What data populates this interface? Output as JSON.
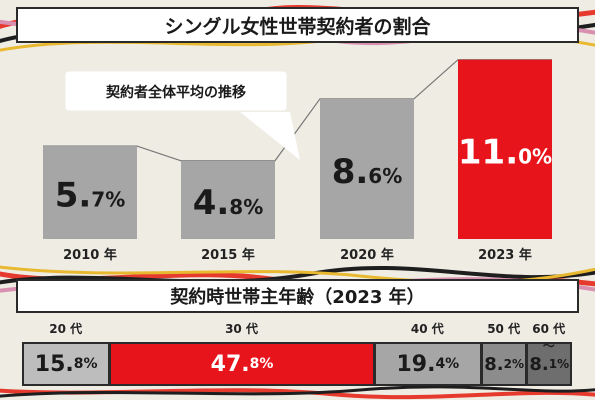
{
  "chart_data": [
    {
      "type": "bar",
      "title": "シングル女性世帯契約者の割合",
      "categories": [
        "2010 年",
        "2015 年",
        "2020 年",
        "2023 年"
      ],
      "values": [
        5.7,
        4.8,
        8.6,
        11.0
      ],
      "value_labels": [
        {
          "int": "5.",
          "dec": "7%"
        },
        {
          "int": "4.",
          "dec": "8%"
        },
        {
          "int": "8.",
          "dec": "6%"
        },
        {
          "int": "11.",
          "dec": "0%"
        }
      ],
      "annotation": "契約者全体平均の推移",
      "highlight_index": 3,
      "colors": {
        "normal": "#a6a6a6",
        "highlight": "#e8141c"
      }
    },
    {
      "type": "bar",
      "stacked": true,
      "title": "契約時世帯主年齢（2023 年）",
      "categories": [
        "20 代",
        "30 代",
        "40 代",
        "50 代",
        "60 代～"
      ],
      "values": [
        15.8,
        47.8,
        19.4,
        8.2,
        8.1
      ],
      "value_labels": [
        {
          "int": "15.",
          "dec": "8%"
        },
        {
          "int": "47.",
          "dec": "8%"
        },
        {
          "int": "19.",
          "dec": "4%"
        },
        {
          "int": "8.",
          "dec": "2%"
        },
        {
          "int": "8.",
          "dec": "1%"
        }
      ],
      "colors": [
        "#bdbdbd",
        "#e8141c",
        "#a6a6a6",
        "#8c8c8c",
        "#6e6e6e"
      ]
    }
  ]
}
